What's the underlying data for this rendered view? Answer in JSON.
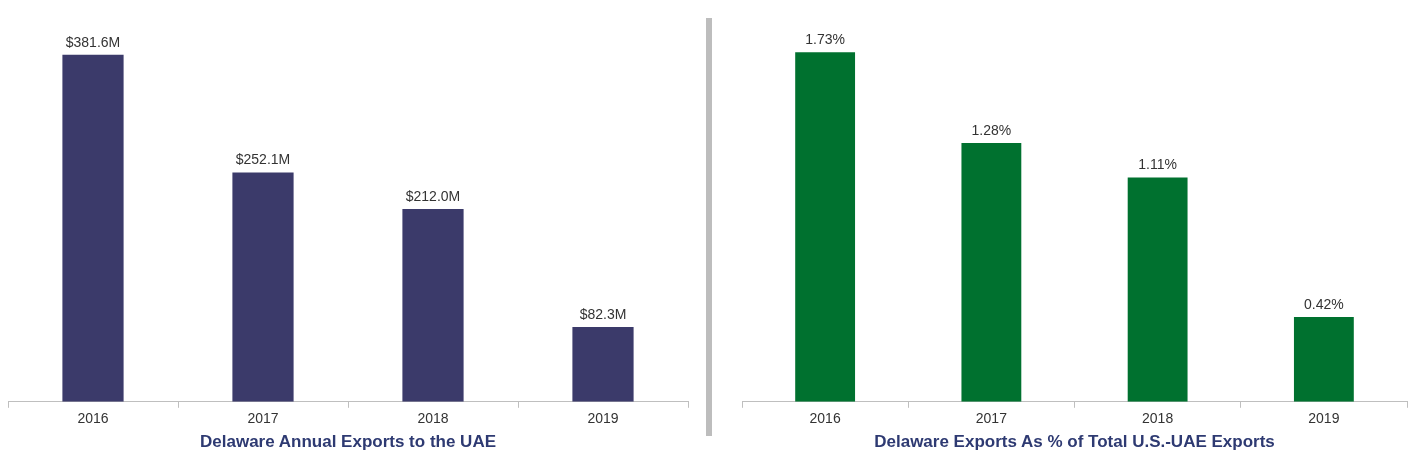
{
  "chart_data": [
    {
      "type": "bar",
      "title": "Delaware Annual Exports to the UAE",
      "categories": [
        "2016",
        "2017",
        "2018",
        "2019"
      ],
      "values": [
        381.6,
        252.1,
        212.0,
        82.3
      ],
      "color": "#3b3a6a",
      "value_labels": [
        "$381.6M",
        "$252.1M",
        "$212.0M",
        "$82.3M"
      ],
      "grid": false,
      "legend": false
    },
    {
      "type": "bar",
      "title": "Delaware Exports As % of Total U.S.-UAE Exports",
      "categories": [
        "2016",
        "2017",
        "2018",
        "2019"
      ],
      "values": [
        1.73,
        1.28,
        1.11,
        0.42
      ],
      "color": "#00712f",
      "value_labels": [
        "1.73%",
        "1.28%",
        "1.11%",
        "0.42%"
      ],
      "grid": false,
      "legend": false
    }
  ]
}
